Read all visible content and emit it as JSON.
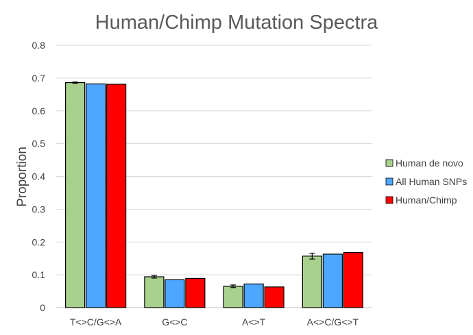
{
  "chart_data": {
    "type": "bar",
    "title": "Human/Chimp Mutation Spectra",
    "xlabel": "",
    "ylabel": "Proportion",
    "ylim": [
      0,
      0.8
    ],
    "yticks": [
      "0",
      "0.1",
      "0.2",
      "0.3",
      "0.4",
      "0.5",
      "0.6",
      "0.7",
      "0.8"
    ],
    "ytick_values": [
      0,
      0.1,
      0.2,
      0.3,
      0.4,
      0.5,
      0.6,
      0.7,
      0.8
    ],
    "grid": true,
    "legend_position": "right",
    "categories": [
      "T<>C/G<>A",
      "G<>C",
      "A<>T",
      "A<>C/G<>T"
    ],
    "series": [
      {
        "name": "Human de novo",
        "color": "#a9d18e",
        "values": [
          0.686,
          0.094,
          0.065,
          0.157
        ],
        "errors": [
          0.002,
          0.004,
          0.004,
          0.009
        ]
      },
      {
        "name": "All Human SNPs",
        "color": "#4da6ff",
        "values": [
          0.682,
          0.085,
          0.072,
          0.163
        ],
        "errors": null
      },
      {
        "name": "Human/Chimp",
        "color": "#ff0000",
        "values": [
          0.681,
          0.089,
          0.063,
          0.168
        ],
        "errors": null
      }
    ]
  }
}
